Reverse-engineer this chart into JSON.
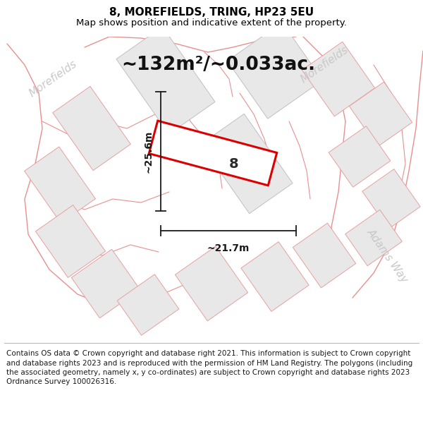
{
  "title": "8, MOREFIELDS, TRING, HP23 5EU",
  "subtitle": "Map shows position and indicative extent of the property.",
  "area_text": "~132m²/~0.033ac.",
  "dim_vertical": "~25.6m",
  "dim_horizontal": "~21.7m",
  "plot_label": "8",
  "street_topleft": "Morefields",
  "street_topright": "Morefields",
  "street_bottomright": "Adams Way",
  "footer_text": "Contains OS data © Crown copyright and database right 2021. This information is subject to Crown copyright and database rights 2023 and is reproduced with the permission of HM Land Registry. The polygons (including the associated geometry, namely x, y co-ordinates) are subject to Crown copyright and database rights 2023 Ordnance Survey 100026316.",
  "map_bg": "#ffffff",
  "plot_edge_color": "#dd0000",
  "plot_fill_color": "#ffffff",
  "parcel_fill": "#e8e8e8",
  "parcel_edge_pink": "#e8a0a0",
  "parcel_edge_gray": "#c0c0c0",
  "road_line_color": "#e89090",
  "dim_color": "#1a1a1a",
  "street_color_gray": "#c8c8c8",
  "title_fontsize": 11,
  "subtitle_fontsize": 9.5,
  "area_fontsize": 19,
  "dim_fontsize": 10,
  "plot_label_fontsize": 14,
  "street_fontsize": 11,
  "footer_fontsize": 7.5
}
